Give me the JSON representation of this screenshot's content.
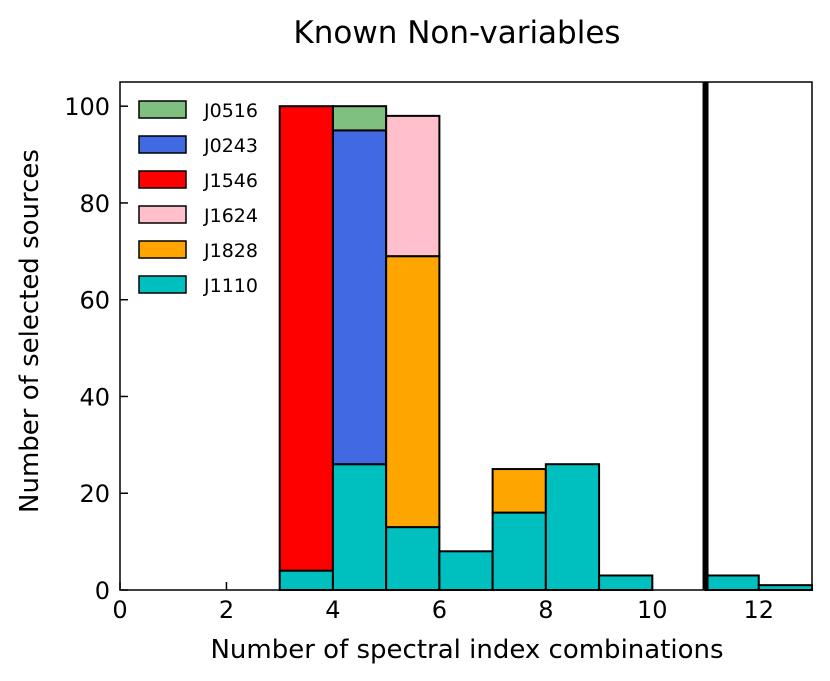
{
  "chart_data": {
    "type": "bar",
    "stacked": true,
    "title": "Known Non-variables",
    "xlabel": "Number of spectral index combinations",
    "ylabel": "Number of selected sources",
    "xlim": [
      0,
      13
    ],
    "ylim": [
      0,
      105
    ],
    "xticks": [
      0,
      2,
      4,
      6,
      8,
      10,
      12
    ],
    "yticks": [
      0,
      20,
      40,
      60,
      80,
      100
    ],
    "grid": false,
    "legend_position": "top-left",
    "bins": [
      [
        3,
        4
      ],
      [
        4,
        5
      ],
      [
        5,
        6
      ],
      [
        6,
        7
      ],
      [
        7,
        8
      ],
      [
        8,
        9
      ],
      [
        9,
        10
      ],
      [
        11,
        12
      ],
      [
        12,
        13
      ]
    ],
    "series": [
      {
        "name": "J1110",
        "color": "#00bfbf",
        "values": [
          4,
          26,
          13,
          8,
          16,
          26,
          3,
          3,
          1
        ]
      },
      {
        "name": "J1828",
        "color": "#ffa500",
        "values": [
          0,
          0,
          56,
          0,
          9,
          0,
          0,
          0,
          0
        ]
      },
      {
        "name": "J1624",
        "color": "#ffc0cb",
        "values": [
          0,
          0,
          29,
          0,
          0,
          0,
          0,
          0,
          0
        ]
      },
      {
        "name": "J1546",
        "color": "#ff0000",
        "values": [
          96,
          0,
          0,
          0,
          0,
          0,
          0,
          0,
          0
        ]
      },
      {
        "name": "J0243",
        "color": "#4169e1",
        "values": [
          0,
          69,
          0,
          0,
          0,
          0,
          0,
          0,
          0
        ]
      },
      {
        "name": "J0516",
        "color": "#7fbf7f",
        "values": [
          0,
          5,
          0,
          0,
          0,
          0,
          0,
          0,
          0
        ]
      }
    ],
    "legend_order": [
      "J0516",
      "J0243",
      "J1546",
      "J1624",
      "J1828",
      "J1110"
    ],
    "vertical_line": {
      "x": 11,
      "color": "#000000"
    }
  }
}
